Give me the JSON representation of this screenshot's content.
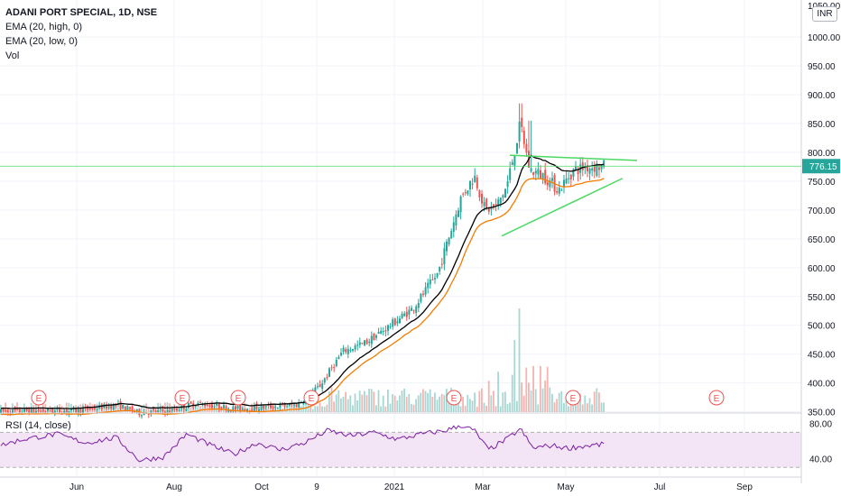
{
  "legend": {
    "title": "ADANI PORT SPECIAL, 1D, NSE",
    "ema_high": "EMA (20, high, 0)",
    "ema_low": "EMA (20, low, 0)",
    "vol": "Vol",
    "rsi": "RSI (14, close)"
  },
  "currency": "INR",
  "price_label": "776.15",
  "colors": {
    "up": "#26a69a",
    "down": "#ef5350",
    "ema_high": "#000000",
    "ema_low": "#f57c00",
    "trendline": "#4cd964",
    "rsi_line": "#7b1fa2",
    "rsi_band": "#f3e5f5",
    "earnings": "#ef5350"
  },
  "chart_data": {
    "type": "candlestick",
    "y_ticks": [
      "1000.00",
      "950.00",
      "900.00",
      "850.00",
      "800.00",
      "750.00",
      "700.00",
      "650.00",
      "600.00",
      "550.00",
      "500.00",
      "450.00",
      "400.00",
      "350.00"
    ],
    "y_top_label": "1050.00",
    "x_ticks": [
      "Jun",
      "Aug",
      "Oct",
      "9",
      "2021",
      "Mar",
      "May",
      "Jul",
      "Sep"
    ],
    "ylim": [
      340,
      1055
    ],
    "last_price": 776.15,
    "trendlines": [
      {
        "from": {
          "date": "Mar-06",
          "price": 795
        },
        "to": {
          "date": "Jun-02",
          "price": 786
        }
      },
      {
        "from": {
          "date": "Feb-24",
          "price": 655
        },
        "to": {
          "date": "Jun-01",
          "price": 755
        }
      }
    ],
    "close_anchors": [
      [
        "2020-04-25",
        350
      ],
      [
        "2020-06-15",
        352
      ],
      [
        "2020-07-10",
        362
      ],
      [
        "2020-07-25",
        348
      ],
      [
        "2020-08-15",
        352
      ],
      [
        "2020-09-01",
        365
      ],
      [
        "2020-09-25",
        355
      ],
      [
        "2020-10-15",
        358
      ],
      [
        "2020-11-05",
        362
      ],
      [
        "2020-11-20",
        395
      ],
      [
        "2020-12-05",
        455
      ],
      [
        "2020-12-20",
        470
      ],
      [
        "2021-01-05",
        500
      ],
      [
        "2021-01-20",
        530
      ],
      [
        "2021-02-05",
        590
      ],
      [
        "2021-02-20",
        720
      ],
      [
        "2021-03-01",
        760
      ],
      [
        "2021-03-08",
        700
      ],
      [
        "2021-03-15",
        705
      ],
      [
        "2021-03-22",
        740
      ],
      [
        "2021-03-31",
        850
      ],
      [
        "2021-04-06",
        770
      ],
      [
        "2021-04-15",
        760
      ],
      [
        "2021-04-25",
        735
      ],
      [
        "2021-05-05",
        770
      ],
      [
        "2021-05-15",
        775
      ],
      [
        "2021-05-24",
        776
      ]
    ],
    "rsi": {
      "ticks": [
        "80.00",
        "40.00"
      ],
      "ylim": [
        20,
        90
      ],
      "bands": [
        70,
        30
      ],
      "anchors": [
        [
          "2020-04-25",
          55
        ],
        [
          "2020-05-10",
          62
        ],
        [
          "2020-06-01",
          68
        ],
        [
          "2020-06-20",
          58
        ],
        [
          "2020-07-10",
          64
        ],
        [
          "2020-07-25",
          38
        ],
        [
          "2020-08-10",
          42
        ],
        [
          "2020-08-25",
          68
        ],
        [
          "2020-09-10",
          55
        ],
        [
          "2020-09-25",
          45
        ],
        [
          "2020-10-10",
          58
        ],
        [
          "2020-10-25",
          50
        ],
        [
          "2020-11-10",
          58
        ],
        [
          "2020-11-25",
          72
        ],
        [
          "2020-12-10",
          66
        ],
        [
          "2020-12-25",
          70
        ],
        [
          "2021-01-10",
          62
        ],
        [
          "2021-01-25",
          68
        ],
        [
          "2021-02-10",
          72
        ],
        [
          "2021-02-20",
          78
        ],
        [
          "2021-03-01",
          72
        ],
        [
          "2021-03-10",
          50
        ],
        [
          "2021-03-22",
          62
        ],
        [
          "2021-03-31",
          74
        ],
        [
          "2021-04-08",
          52
        ],
        [
          "2021-04-20",
          55
        ],
        [
          "2021-05-01",
          52
        ],
        [
          "2021-05-15",
          55
        ],
        [
          "2021-05-24",
          56
        ]
      ]
    },
    "earnings": [
      "2020-05-12",
      "2020-08-01",
      "2020-10-01",
      "2020-11-01",
      "2021-02-08",
      "2021-05-01",
      "2021-08-05"
    ]
  }
}
